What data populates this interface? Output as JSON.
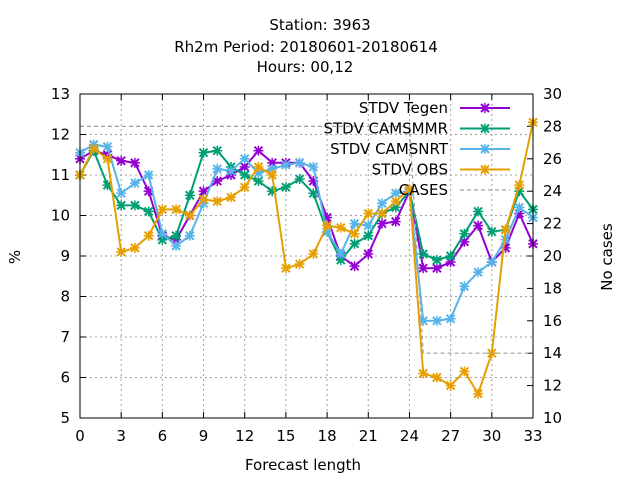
{
  "title": {
    "line1": "Station:     3963",
    "line2": "Rh2m   Period: 20180601-20180614",
    "line3": "Hours:  00,12"
  },
  "chart_data": {
    "type": "line",
    "xlabel": "Forecast length",
    "ylabel": "%",
    "y2label": "No cases",
    "xlim": [
      0,
      33
    ],
    "ylim": [
      5,
      13
    ],
    "y2lim": [
      10,
      30
    ],
    "xticks": [
      0,
      3,
      6,
      9,
      12,
      15,
      18,
      21,
      24,
      27,
      30,
      33
    ],
    "yticks": [
      5,
      6,
      7,
      8,
      9,
      10,
      11,
      12,
      13
    ],
    "y2ticks": [
      10,
      12,
      14,
      16,
      18,
      20,
      22,
      24,
      26,
      28,
      30
    ],
    "grid": true,
    "legend_position": "top-right",
    "x": [
      0,
      1,
      2,
      3,
      4,
      5,
      6,
      7,
      8,
      9,
      10,
      11,
      12,
      13,
      14,
      15,
      16,
      17,
      18,
      19,
      20,
      21,
      22,
      23,
      24,
      25,
      26,
      27,
      28,
      29,
      30,
      31,
      32,
      33
    ],
    "series": [
      {
        "name": "STDV Tegen",
        "color": "#9400d3",
        "marker": "x",
        "axis": "y",
        "values": [
          11.4,
          11.6,
          11.5,
          11.35,
          11.3,
          10.6,
          9.5,
          9.4,
          10.0,
          10.6,
          10.85,
          11.0,
          11.2,
          11.6,
          11.3,
          11.3,
          11.3,
          10.85,
          9.95,
          9.0,
          8.75,
          9.05,
          9.8,
          9.85,
          10.6,
          8.7,
          8.7,
          8.85,
          9.35,
          9.75,
          8.85,
          9.2,
          10.05,
          9.3
        ]
      },
      {
        "name": "STDV CAMSMMR",
        "color": "#009e73",
        "marker": "x",
        "axis": "y",
        "values": [
          11.0,
          11.6,
          10.75,
          10.25,
          10.25,
          10.1,
          9.4,
          9.5,
          10.5,
          11.55,
          11.6,
          11.2,
          11.0,
          10.85,
          10.6,
          10.7,
          10.9,
          10.55,
          9.6,
          8.9,
          9.3,
          9.5,
          10.05,
          10.2,
          10.6,
          9.05,
          8.9,
          9.0,
          9.55,
          10.1,
          9.6,
          9.65,
          10.6,
          10.15
        ]
      },
      {
        "name": "STDV CAMSNRT",
        "color": "#56b4e9",
        "marker": "x",
        "axis": "y",
        "values": [
          11.55,
          11.75,
          11.7,
          10.55,
          10.8,
          11.0,
          9.55,
          9.25,
          9.5,
          10.3,
          11.15,
          11.1,
          11.4,
          11.05,
          11.15,
          11.25,
          11.3,
          11.2,
          9.6,
          9.05,
          9.8,
          9.75,
          10.3,
          10.55,
          10.6,
          7.4,
          7.4,
          7.45,
          8.25,
          8.6,
          8.85,
          9.4,
          10.2,
          9.95
        ]
      },
      {
        "name": "STDV OBS",
        "color": "#e69f00",
        "marker": "x",
        "axis": "y",
        "values": [
          11.0,
          11.65,
          11.4,
          9.1,
          9.2,
          9.5,
          10.15,
          10.15,
          10.0,
          10.4,
          10.35,
          10.45,
          10.7,
          11.2,
          11.0,
          8.7,
          8.8,
          9.05,
          9.75,
          9.7,
          9.55,
          10.05,
          10.05,
          10.35,
          10.65,
          6.1,
          6.0,
          5.8,
          6.15,
          5.6,
          6.6,
          9.65,
          10.75,
          12.3
        ]
      },
      {
        "name": "CASES",
        "color": "#a0a0a0",
        "marker": "none",
        "axis": "y2",
        "values": [
          28,
          28,
          28,
          28,
          28,
          28,
          28,
          28,
          28,
          28,
          28,
          28,
          28,
          28,
          28,
          28,
          28,
          28,
          28,
          28,
          28,
          28,
          28,
          28,
          28,
          14,
          14,
          14,
          14,
          14,
          14,
          14,
          14,
          14
        ]
      }
    ]
  }
}
